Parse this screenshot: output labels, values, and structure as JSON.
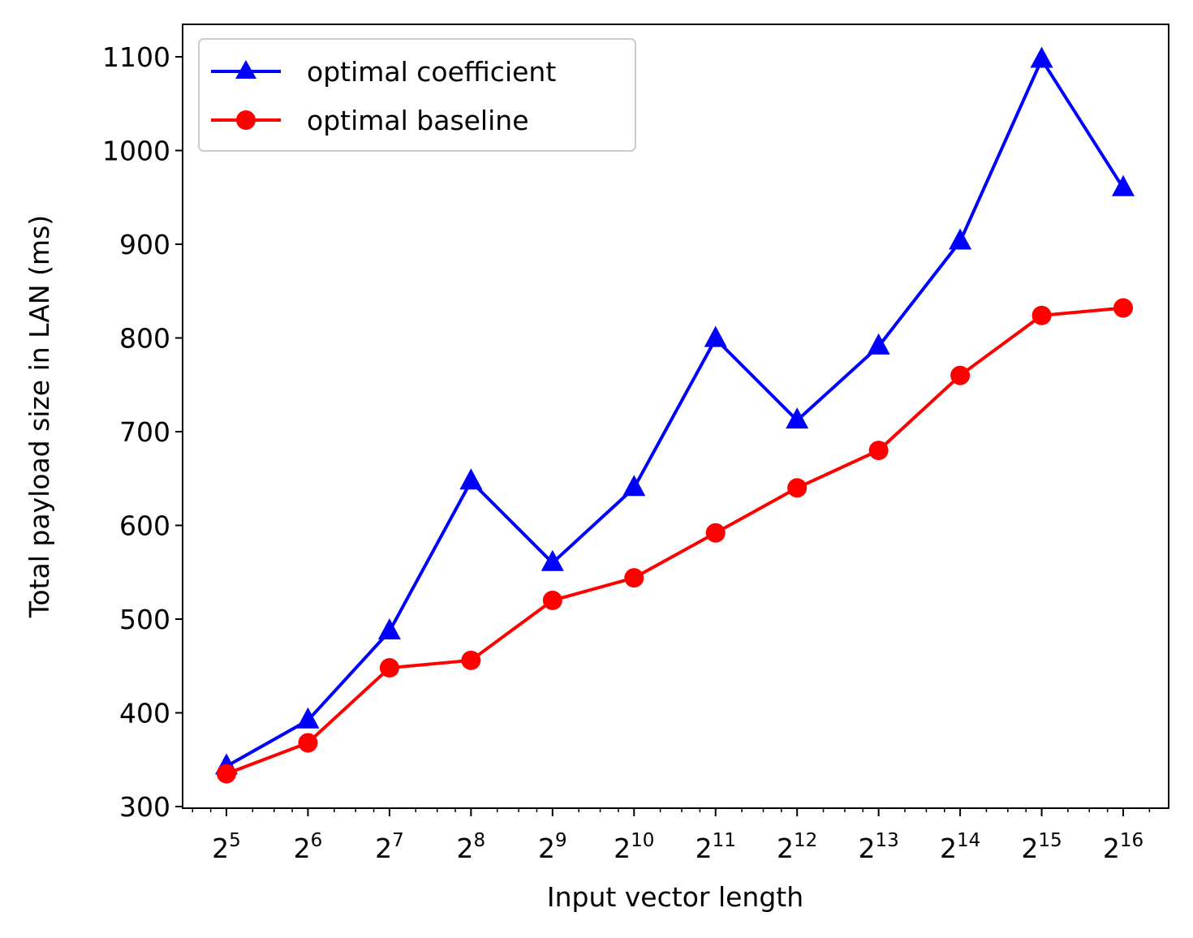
{
  "chart_data": {
    "type": "line",
    "title": "",
    "xlabel": "Input vector length",
    "ylabel": "Total payload size in LAN (ms)",
    "x_scale": "log2",
    "x": [
      32,
      64,
      128,
      256,
      512,
      1024,
      2048,
      4096,
      8192,
      16384,
      32768,
      65536
    ],
    "x_tick_labels": [
      {
        "base": "2",
        "exp": "5"
      },
      {
        "base": "2",
        "exp": "6"
      },
      {
        "base": "2",
        "exp": "7"
      },
      {
        "base": "2",
        "exp": "8"
      },
      {
        "base": "2",
        "exp": "9"
      },
      {
        "base": "2",
        "exp": "10"
      },
      {
        "base": "2",
        "exp": "11"
      },
      {
        "base": "2",
        "exp": "12"
      },
      {
        "base": "2",
        "exp": "13"
      },
      {
        "base": "2",
        "exp": "14"
      },
      {
        "base": "2",
        "exp": "15"
      },
      {
        "base": "2",
        "exp": "16"
      }
    ],
    "y_ticks": [
      "300",
      "400",
      "500",
      "600",
      "700",
      "800",
      "900",
      "1000",
      "1100"
    ],
    "ylim": [
      300,
      1135
    ],
    "grid": false,
    "legend_position": "top-left",
    "series": [
      {
        "name": "optimal coefficient",
        "color": "#0000ff",
        "marker": "triangle",
        "values": [
          343,
          392,
          487,
          647,
          560,
          640,
          799,
          712,
          791,
          903,
          1097,
          960
        ]
      },
      {
        "name": "optimal baseline",
        "color": "#ff0000",
        "marker": "circle",
        "values": [
          335,
          368,
          448,
          456,
          520,
          544,
          592,
          640,
          680,
          760,
          824,
          832
        ]
      }
    ]
  }
}
